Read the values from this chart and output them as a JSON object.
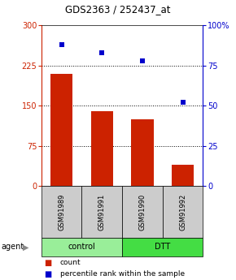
{
  "title": "GDS2363 / 252437_at",
  "categories": [
    "GSM91989",
    "GSM91991",
    "GSM91990",
    "GSM91992"
  ],
  "bar_values": [
    210,
    140,
    125,
    40
  ],
  "percentile_values": [
    88,
    83,
    78,
    52
  ],
  "bar_color": "#cc2200",
  "dot_color": "#0000cc",
  "left_ylim": [
    0,
    300
  ],
  "right_ylim": [
    0,
    100
  ],
  "left_yticks": [
    0,
    75,
    150,
    225,
    300
  ],
  "right_yticks": [
    0,
    25,
    50,
    75,
    100
  ],
  "right_yticklabels": [
    "0",
    "25",
    "50",
    "75",
    "100%"
  ],
  "grid_values": [
    75,
    150,
    225
  ],
  "groups": [
    {
      "label": "control",
      "color": "#99ee99",
      "indices": [
        0,
        1
      ]
    },
    {
      "label": "DTT",
      "color": "#44dd44",
      "indices": [
        2,
        3
      ]
    }
  ],
  "agent_label": "agent",
  "legend_count_label": "count",
  "legend_pct_label": "percentile rank within the sample",
  "bar_width": 0.55,
  "background_color": "#ffffff",
  "title_fontsize": 8.5,
  "tick_fontsize": 7,
  "sample_fontsize": 6,
  "group_fontsize": 7,
  "legend_fontsize": 6.5
}
